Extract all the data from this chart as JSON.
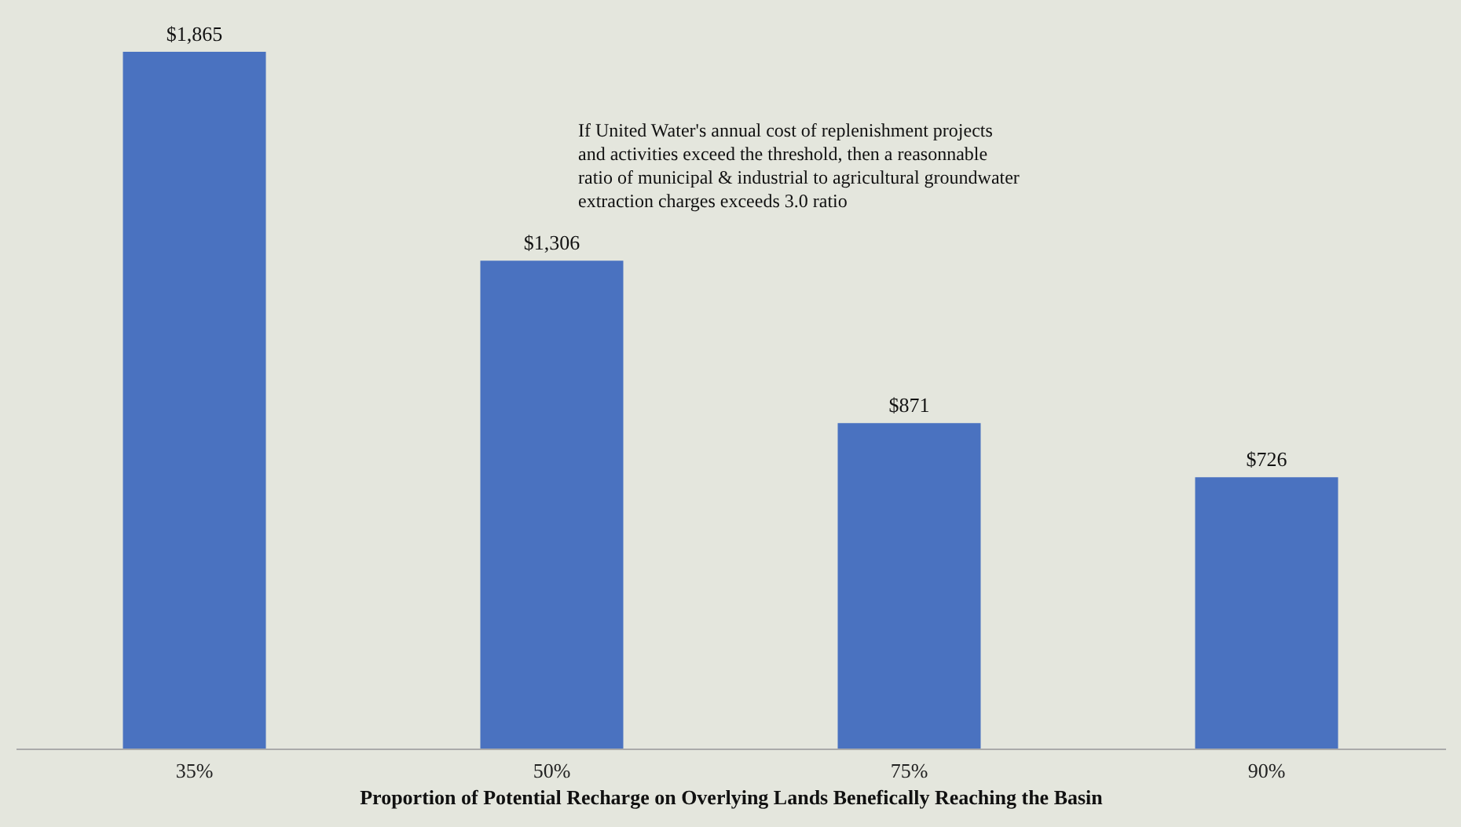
{
  "chart_data": {
    "type": "bar",
    "xlabel": "Proportion  of Potential Recharge on Overlying Lands Benefically Reaching the Basin",
    "categories": [
      "35%",
      "50%",
      "75%",
      "90%"
    ],
    "values": [
      1865,
      1306,
      871,
      726
    ],
    "value_labels": [
      "$1,865",
      "$1,306",
      "$871",
      "$726"
    ],
    "color": "#4a72c0",
    "annotations": [
      "If  United Water's annual cost of replenishment projects\nand activities  exceed the threshold,  then a reasonnable\nratio of municipal  & industrial  to agricultural groundwater\nextraction charges exceeds 3.0 ratio"
    ]
  }
}
